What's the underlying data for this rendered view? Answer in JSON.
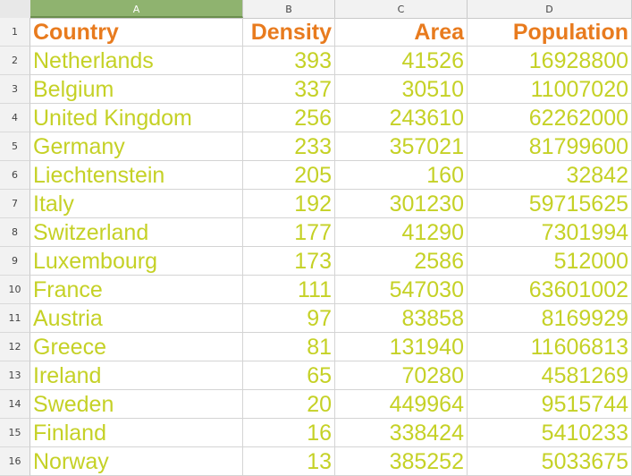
{
  "columns": [
    "A",
    "B",
    "C",
    "D"
  ],
  "headers": [
    "Country",
    "Density",
    "Area",
    "Population"
  ],
  "rows": [
    {
      "n": "2",
      "country": "Netherlands",
      "density": "393",
      "area": "41526",
      "population": "16928800"
    },
    {
      "n": "3",
      "country": "Belgium",
      "density": "337",
      "area": "30510",
      "population": "11007020"
    },
    {
      "n": "4",
      "country": "United Kingdom",
      "density": "256",
      "area": "243610",
      "population": "62262000"
    },
    {
      "n": "5",
      "country": "Germany",
      "density": "233",
      "area": "357021",
      "population": "81799600"
    },
    {
      "n": "6",
      "country": "Liechtenstein",
      "density": "205",
      "area": "160",
      "population": "32842"
    },
    {
      "n": "7",
      "country": "Italy",
      "density": "192",
      "area": "301230",
      "population": "59715625"
    },
    {
      "n": "8",
      "country": "Switzerland",
      "density": "177",
      "area": "41290",
      "population": "7301994"
    },
    {
      "n": "9",
      "country": "Luxembourg",
      "density": "173",
      "area": "2586",
      "population": "512000"
    },
    {
      "n": "10",
      "country": "France",
      "density": "111",
      "area": "547030",
      "population": "63601002"
    },
    {
      "n": "11",
      "country": "Austria",
      "density": "97",
      "area": "83858",
      "population": "8169929"
    },
    {
      "n": "12",
      "country": "Greece",
      "density": "81",
      "area": "131940",
      "population": "11606813"
    },
    {
      "n": "13",
      "country": "Ireland",
      "density": "65",
      "area": "70280",
      "population": "4581269"
    },
    {
      "n": "14",
      "country": "Sweden",
      "density": "20",
      "area": "449964",
      "population": "9515744"
    },
    {
      "n": "15",
      "country": "Finland",
      "density": "16",
      "area": "338424",
      "population": "5410233"
    },
    {
      "n": "16",
      "country": "Norway",
      "density": "13",
      "area": "385252",
      "population": "5033675"
    }
  ]
}
